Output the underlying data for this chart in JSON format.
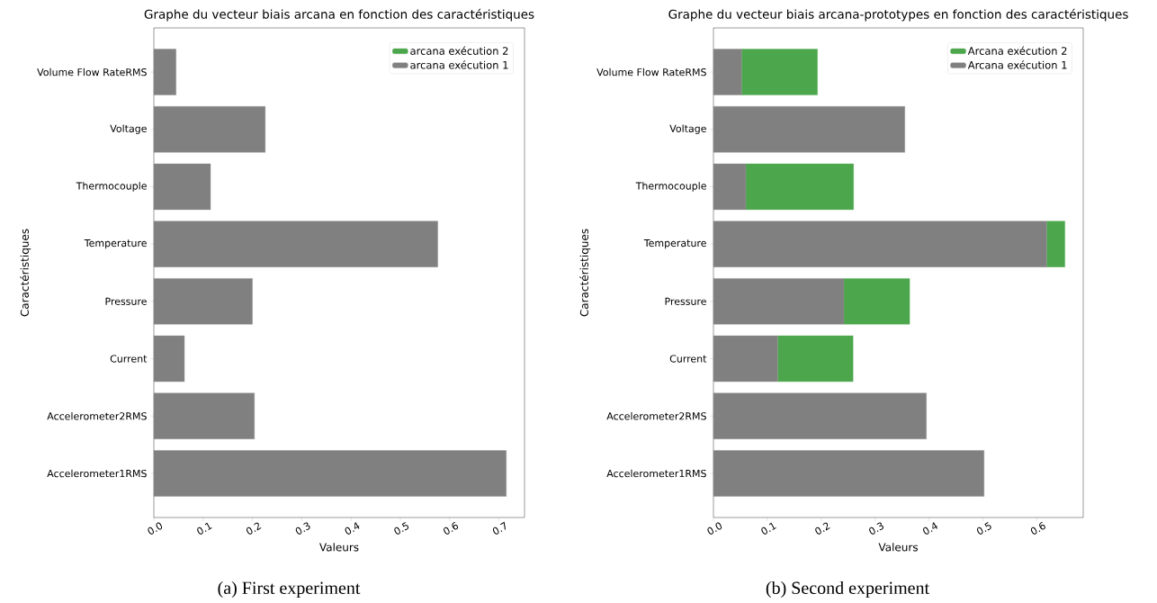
{
  "chart_data": [
    {
      "type": "bar",
      "orientation": "horizontal",
      "stacked": true,
      "title": "Graphe du vecteur biais arcana en fonction des caractéristiques",
      "xlabel": "Valeurs",
      "ylabel": "Caractéristiques",
      "categories": [
        "Volume Flow RateRMS",
        "Voltage",
        "Thermocouple",
        "Temperature",
        "Pressure",
        "Current",
        "Accelerometer2RMS",
        "Accelerometer1RMS"
      ],
      "series": [
        {
          "name": "arcana exécution 1",
          "color": "#808080",
          "values": [
            0.045,
            0.226,
            0.115,
            0.576,
            0.2,
            0.062,
            0.204,
            0.715
          ]
        },
        {
          "name": "arcana exécution 2",
          "color": "#4ca64c",
          "values": [
            0,
            0,
            0,
            0,
            0,
            0,
            0,
            0
          ]
        }
      ],
      "xlim": [
        0,
        0.752
      ],
      "xticks": [
        {
          "value": 0,
          "label": "0.0"
        },
        0.1,
        0.2,
        0.3,
        0.4,
        0.5,
        0.6,
        0.7
      ],
      "legend": "top right",
      "annotations": [
        "(a) First experiment"
      ]
    },
    {
      "type": "bar",
      "orientation": "horizontal",
      "stacked": true,
      "title": "Graphe du vecteur biais arcana-prototypes en fonction des caractéristiques",
      "xlabel": "Valeurs",
      "ylabel": "Caractéristiques",
      "categories": [
        "Volume Flow RateRMS",
        "Voltage",
        "Thermocouple",
        "Temperature",
        "Pressure",
        "Current",
        "Accelerometer2RMS",
        "Accelerometer1RMS"
      ],
      "series": [
        {
          "name": "Arcana exécution 1",
          "color": "#808080",
          "values": [
            0.052,
            0.355,
            0.06,
            0.618,
            0.242,
            0.119,
            0.395,
            0.502
          ]
        },
        {
          "name": "Arcana exécution 2",
          "color": "#4ca64c",
          "values": [
            0.141,
            0,
            0.2,
            0.034,
            0.122,
            0.14,
            0,
            0
          ]
        }
      ],
      "xlim": [
        0,
        0.686
      ],
      "xticks": [
        {
          "value": 0,
          "label": "0.0"
        },
        0.1,
        0.2,
        0.3,
        0.4,
        0.5,
        0.6
      ],
      "legend": "top right",
      "annotations": [
        "(b) Second experiment"
      ]
    }
  ]
}
